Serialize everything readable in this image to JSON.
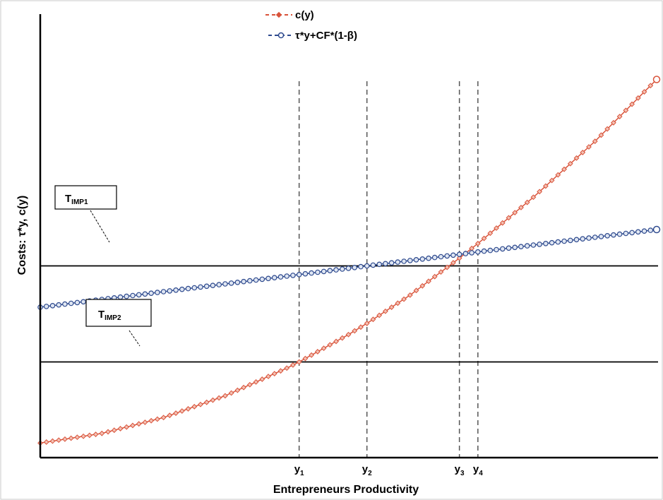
{
  "chart_data": {
    "type": "line",
    "title": "",
    "xlabel": "Entrepreneurs Productivity",
    "ylabel": "Costs: τ*y, c(y)",
    "xlim": [
      0,
      100
    ],
    "ylim": [
      0,
      100
    ],
    "grid": false,
    "legend_position": "top-center",
    "x_ticks": [],
    "y_ticks": [],
    "colors": {
      "cost": "#d9533a",
      "tax": "#2e4a8e",
      "axis": "#000000",
      "vline": "#555555"
    },
    "series": [
      {
        "name": "c(y)",
        "marker": "diamond",
        "color": "#d9533a",
        "x": [
          0,
          10,
          20,
          30,
          40,
          42,
          50,
          53,
          60,
          68,
          71,
          80,
          90,
          100
        ],
        "y": [
          4.7,
          7.8,
          12.9,
          19.9,
          28.8,
          30.8,
          39.6,
          43.2,
          52.3,
          64.2,
          68.9,
          83.8,
          101.8,
          121.7
        ]
      },
      {
        "name": "τ*y+CF*(1-β)",
        "marker": "circle",
        "color": "#2e4a8e",
        "x": [
          0,
          10,
          20,
          30,
          42,
          53,
          68,
          71,
          80,
          90,
          100
        ],
        "y": [
          48.4,
          50.9,
          53.4,
          55.9,
          58.9,
          61.7,
          65.4,
          66.2,
          68.4,
          70.9,
          73.4
        ]
      }
    ],
    "hlines": [
      {
        "name": "T_IMP1",
        "y": 61.7
      },
      {
        "name": "T_IMP2",
        "y": 30.8
      }
    ],
    "boxes": [
      {
        "name": "T_IMP1",
        "main": "T",
        "sub": "IMP1"
      },
      {
        "name": "T_IMP2",
        "main": "T",
        "sub": "IMP2"
      }
    ],
    "vlines": [
      {
        "x": 42,
        "label": "y",
        "sub": "1"
      },
      {
        "x": 53,
        "label": "y",
        "sub": "2"
      },
      {
        "x": 68,
        "label": "y",
        "sub": "3"
      },
      {
        "x": 71,
        "label": "y",
        "sub": "4"
      }
    ]
  }
}
